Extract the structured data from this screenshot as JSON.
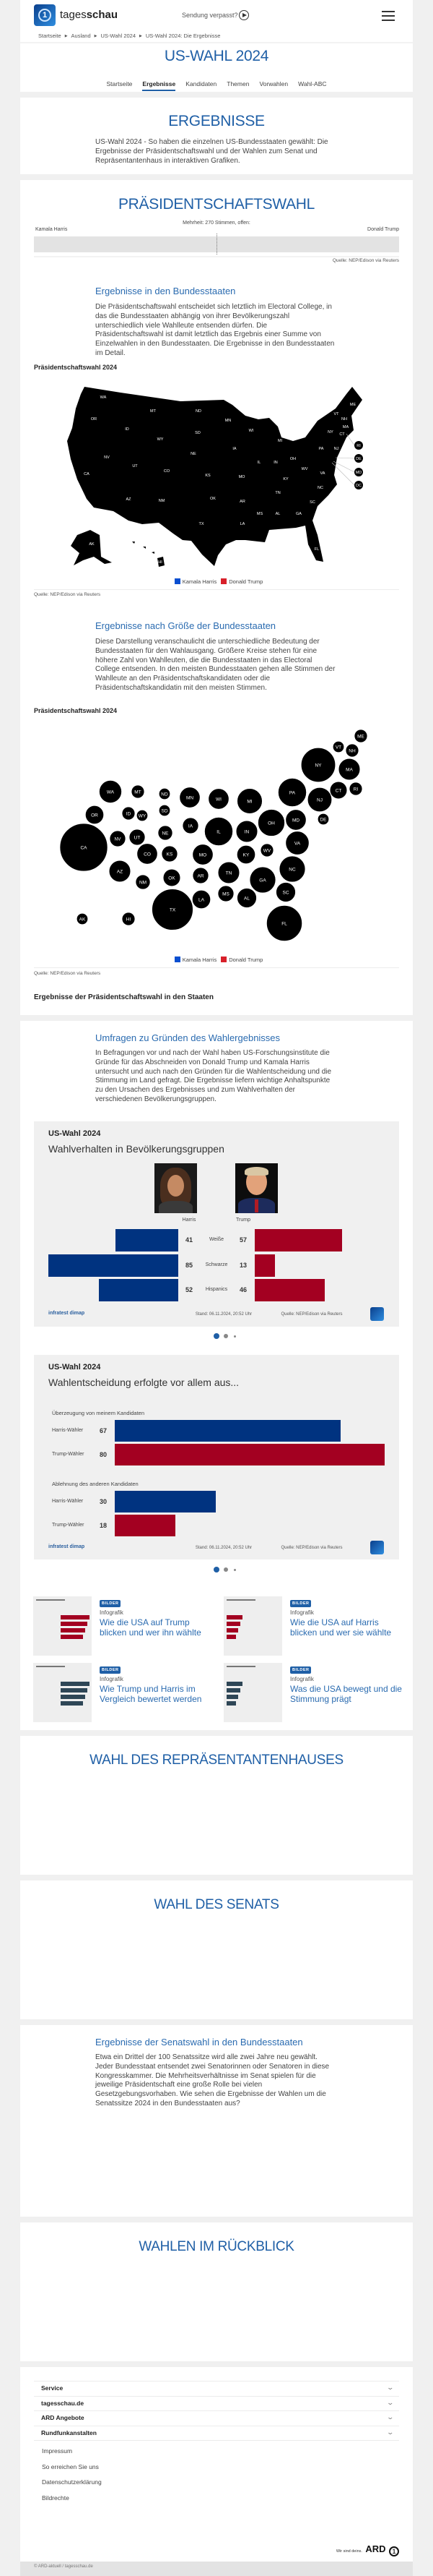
{
  "colors": {
    "brand_blue": "#1f5fa6",
    "harris": "#003380",
    "trump": "#a30021",
    "legend_harris": "#0a4fd0",
    "legend_trump": "#d8202a",
    "map_fill": "#000000"
  },
  "header": {
    "logo_light": "tages",
    "logo_bold": "schau",
    "missed_show": "Sendung verpasst?",
    "play_icon": "play-circle-icon",
    "menu_icon": "hamburger-icon",
    "breadcrumb": [
      "Startseite",
      "Ausland",
      "US-Wahl 2024",
      "US-Wahl 2024: Die Ergebnisse"
    ]
  },
  "topic": {
    "title": "US-WAHL 2024",
    "nav": [
      {
        "label": "Startseite",
        "active": false
      },
      {
        "label": "Ergebnisse",
        "active": true
      },
      {
        "label": "Kandidaten",
        "active": false
      },
      {
        "label": "Themen",
        "active": false
      },
      {
        "label": "Vorwahlen",
        "active": false
      },
      {
        "label": "Wahl-ABC",
        "active": false
      }
    ]
  },
  "intro": {
    "title": "ERGEBNISSE",
    "text": "US-Wahl 2024 - So haben die einzelnen US-Bundesstaaten gewählt: Die Ergebnisse der Präsidentschaftswahl und der Wahlen zum Senat und Repräsentantenhaus in interaktiven Grafiken."
  },
  "president": {
    "title": "PRÄSIDENTSCHAFTSWAHL",
    "majority": "Mehrheit: 270 Stimmen, offen:",
    "left_candidate": "Kamala Harris",
    "right_candidate": "Donald Trump",
    "source": "Quelle: NEP/Edison via Reuters",
    "states_heading": "Ergebnisse in den Bundesstaaten",
    "states_text": "Die Präsidentschaftswahl entscheidet sich letztlich im Electoral College, in das die Bundesstaaten abhängig von ihrer Bevölkerungszahl unterschiedlich viele Wahlleute entsenden dürfen. Die Präsidentschaftswahl ist damit letztlich das Ergebnis einer Summe von Einzelwahlen in den Bundesstaaten. Die Ergebnisse in den Bundesstaaten im Detail.",
    "map_label": "Präsidentschaftswahl 2024",
    "map_states": [
      "WA",
      "OR",
      "CA",
      "NV",
      "ID",
      "MT",
      "WY",
      "UT",
      "AZ",
      "CO",
      "NM",
      "ND",
      "SD",
      "NE",
      "KS",
      "OK",
      "TX",
      "MN",
      "IA",
      "MO",
      "AR",
      "LA",
      "WI",
      "IL",
      "MI",
      "IN",
      "OH",
      "KY",
      "TN",
      "MS",
      "AL",
      "GA",
      "FL",
      "SC",
      "NC",
      "VA",
      "WV",
      "PA",
      "NY",
      "VT",
      "NH",
      "ME",
      "MA",
      "CT",
      "NJ",
      "AK",
      "HI",
      "RI",
      "DE",
      "MD",
      "DC"
    ],
    "legend": [
      {
        "label": "Kamala Harris",
        "color": "#0a4fd0"
      },
      {
        "label": "Donald Trump",
        "color": "#d8202a"
      }
    ],
    "size_heading": "Ergebnisse nach Größe der Bundesstaaten",
    "size_text": "Diese Darstellung veranschaulicht die unterschiedliche Bedeutung der Bundesstaaten für den Wahlausgang. Größere Kreise stehen für eine höhere Zahl von Wahlleuten, die die Bundesstaaten in das Electoral College entsenden. In den meisten Bundesstaaten gehen alle Stimmen der Wahlleute an den Präsidentschaftskandidaten oder die Präsidentschaftskandidatin mit den meisten Stimmen.",
    "bubble_label": "Präsidentschaftswahl 2024",
    "bubble_states": [
      {
        "abbr": "AL",
        "electoral_votes": 9
      },
      {
        "abbr": "AK",
        "electoral_votes": 3
      },
      {
        "abbr": "AZ",
        "electoral_votes": 11
      },
      {
        "abbr": "AR",
        "electoral_votes": 6
      },
      {
        "abbr": "CA",
        "electoral_votes": 54
      },
      {
        "abbr": "CO",
        "electoral_votes": 10
      },
      {
        "abbr": "CT",
        "electoral_votes": 7
      },
      {
        "abbr": "DE",
        "electoral_votes": 3
      },
      {
        "abbr": "FL",
        "electoral_votes": 30
      },
      {
        "abbr": "GA",
        "electoral_votes": 16
      },
      {
        "abbr": "HI",
        "electoral_votes": 4
      },
      {
        "abbr": "ID",
        "electoral_votes": 4
      },
      {
        "abbr": "IL",
        "electoral_votes": 19
      },
      {
        "abbr": "IN",
        "electoral_votes": 11
      },
      {
        "abbr": "IA",
        "electoral_votes": 6
      },
      {
        "abbr": "KS",
        "electoral_votes": 6
      },
      {
        "abbr": "KY",
        "electoral_votes": 8
      },
      {
        "abbr": "LA",
        "electoral_votes": 8
      },
      {
        "abbr": "ME",
        "electoral_votes": 4
      },
      {
        "abbr": "MD",
        "electoral_votes": 10
      },
      {
        "abbr": "MA",
        "electoral_votes": 11
      },
      {
        "abbr": "MI",
        "electoral_votes": 15
      },
      {
        "abbr": "MN",
        "electoral_votes": 10
      },
      {
        "abbr": "MS",
        "electoral_votes": 6
      },
      {
        "abbr": "MO",
        "electoral_votes": 10
      },
      {
        "abbr": "MT",
        "electoral_votes": 4
      },
      {
        "abbr": "NE",
        "electoral_votes": 5
      },
      {
        "abbr": "NV",
        "electoral_votes": 6
      },
      {
        "abbr": "NH",
        "electoral_votes": 4
      },
      {
        "abbr": "NJ",
        "electoral_votes": 14
      },
      {
        "abbr": "NM",
        "electoral_votes": 5
      },
      {
        "abbr": "NY",
        "electoral_votes": 28
      },
      {
        "abbr": "NC",
        "electoral_votes": 16
      },
      {
        "abbr": "ND",
        "electoral_votes": 3
      },
      {
        "abbr": "OH",
        "electoral_votes": 17
      },
      {
        "abbr": "OK",
        "electoral_votes": 7
      },
      {
        "abbr": "OR",
        "electoral_votes": 8
      },
      {
        "abbr": "PA",
        "electoral_votes": 19
      },
      {
        "abbr": "RI",
        "electoral_votes": 4
      },
      {
        "abbr": "SC",
        "electoral_votes": 9
      },
      {
        "abbr": "SD",
        "electoral_votes": 3
      },
      {
        "abbr": "TN",
        "electoral_votes": 11
      },
      {
        "abbr": "TX",
        "electoral_votes": 40
      },
      {
        "abbr": "UT",
        "electoral_votes": 6
      },
      {
        "abbr": "VT",
        "electoral_votes": 3
      },
      {
        "abbr": "VA",
        "electoral_votes": 13
      },
      {
        "abbr": "WA",
        "electoral_votes": 12
      },
      {
        "abbr": "WV",
        "electoral_votes": 4
      },
      {
        "abbr": "WI",
        "electoral_votes": 10
      },
      {
        "abbr": "WY",
        "electoral_votes": 3
      }
    ],
    "states_table_label": "Ergebnisse der Präsidentschaftswahl in den Staaten"
  },
  "polls": {
    "heading": "Umfragen zu Gründen des Wahlergebnisses",
    "text": "In Befragungen vor und nach der Wahl haben US-Forschungsinstitute die Gründe für das Abschneiden von Donald Trump und Kamala Harris untersucht und auch nach den Gründen für die Wahlentscheidung und die Stimmung im Land gefragt. Die Ergebnisse liefern wichtige Anhaltspunkte zu den Ursachen des Ergebnisses und zum Wahlverhalten der verschiedenen Bevölkerungsgruppen.",
    "teasers": [
      {
        "badge": "BILDER",
        "kicker": "Infografik",
        "title": "Wie die USA auf Trump blicken und wer ihn wählte"
      },
      {
        "badge": "BILDER",
        "kicker": "Infografik",
        "title": "Wie die USA auf Harris blicken und wer sie wählte"
      },
      {
        "badge": "BILDER",
        "kicker": "Infografik",
        "title": "Wie Trump und Harris im Vergleich bewertet werden"
      },
      {
        "badge": "BILDER",
        "kicker": "Infografik",
        "title": "Was die USA bewegt und die Stimmung prägt"
      }
    ]
  },
  "chart_data": [
    {
      "type": "bar",
      "title": "US-Wahl 2024",
      "subtitle": "Wahlverhalten in Bevölkerungsgruppen",
      "categories": [
        "Weiße",
        "Schwarze",
        "Hispanics"
      ],
      "series": [
        {
          "name": "Harris",
          "values": [
            41,
            85,
            52
          ],
          "color": "#003380"
        },
        {
          "name": "Trump",
          "values": [
            57,
            13,
            46
          ],
          "color": "#a30021"
        }
      ],
      "brand": "infratest dimap",
      "stand": "Stand: 06.11.2024, 20:52 Uhr",
      "source": "Quelle: NEP/Edison via Reuters",
      "carousel_pages": 3,
      "carousel_active": 1
    },
    {
      "type": "bar",
      "title": "US-Wahl 2024",
      "subtitle": "Wahlentscheidung erfolgte vor allem aus...",
      "groups": [
        {
          "label": "Überzeugung von meinem Kandidaten",
          "bars": [
            {
              "label": "Harris-Wähler",
              "value": 67,
              "color": "#003380"
            },
            {
              "label": "Trump-Wähler",
              "value": 80,
              "color": "#a30021"
            }
          ]
        },
        {
          "label": "Ablehnung des anderen Kandidaten",
          "bars": [
            {
              "label": "Harris-Wähler",
              "value": 30,
              "color": "#003380"
            },
            {
              "label": "Trump-Wähler",
              "value": 18,
              "color": "#a30021"
            }
          ]
        }
      ],
      "brand": "infratest dimap",
      "stand": "Stand: 06.11.2024, 20:52 Uhr",
      "source": "Quelle: NEP/Edison via Reuters",
      "carousel_pages": 3,
      "carousel_active": 1
    }
  ],
  "house": {
    "title": "WAHL DES REPRÄSENTANTENHAUSES"
  },
  "senate": {
    "title": "WAHL DES SENATS",
    "states_heading": "Ergebnisse der Senatswahl in den Bundesstaaten",
    "states_text": "Etwa ein Drittel der 100 Senatssitze wird alle zwei Jahre neu gewählt. Jeder Bundesstaat entsendet zwei Senatorinnen oder Senatoren in diese Kongresskammer. Die Mehrheitsverhältnisse im Senat spielen für die jeweilige Präsidentschaft eine große Rolle bei vielen Gesetzgebungsvorhaben. Wie sehen die Ergebnisse der Wahlen um die Senatssitze 2024 in den Bundesstaaten aus?"
  },
  "review": {
    "title": "WAHLEN IM RÜCKBLICK"
  },
  "footer": {
    "sections": [
      "Service",
      "tagesschau.de",
      "ARD Angebote",
      "Rundfunkanstalten"
    ],
    "links": [
      "Impressum",
      "So erreichen Sie uns",
      "Datenschutzerklärung",
      "Bildrechte"
    ],
    "slogan": "Wir sind deins.",
    "ard": "ARD",
    "copyright": "© ARD-aktuell / tagesschau.de"
  }
}
